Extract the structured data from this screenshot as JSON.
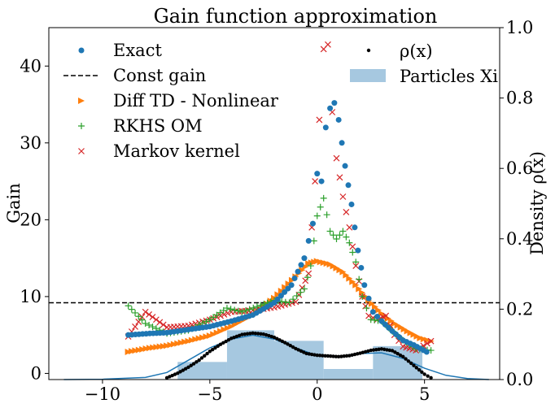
{
  "chart_data": {
    "type": "scatter",
    "title": "Gain function approximation",
    "xlabel": "",
    "ylabel": "Gain",
    "y2label": "Density ρ(x)",
    "xlim": [
      -12.5,
      8.5
    ],
    "ylim": [
      -0.8,
      45
    ],
    "y2lim": [
      0,
      1
    ],
    "xticks": [
      -10,
      -5,
      0,
      5
    ],
    "yticks": [
      0,
      10,
      20,
      30,
      40
    ],
    "y2ticks": [
      0.0,
      0.2,
      0.4,
      0.6,
      0.8,
      1.0
    ],
    "xtick_labels": [
      "−10",
      "−5",
      "0",
      "5"
    ],
    "ytick_labels": [
      "0",
      "10",
      "20",
      "30",
      "40"
    ],
    "y2tick_labels": [
      "0.0",
      "0.2",
      "0.4",
      "0.6",
      "0.8",
      "1.0"
    ],
    "legend_left": [
      "Exact",
      "Const gain",
      "Diff TD - Nonlinear",
      "RKHS OM",
      "Markov kernel"
    ],
    "legend_right": [
      "ρ(x)",
      "Particles X_i"
    ],
    "legend_right_display": [
      "ρ(x)",
      "Particles Xi"
    ],
    "colors": {
      "exact": "#1f77b4",
      "const": "#000000",
      "difftd": "#ff7f0e",
      "rkhs": "#2ca02c",
      "markov": "#d62728",
      "rho": "#000000",
      "hist": "#a6c8e0",
      "hist_line": "#1f77b4"
    },
    "constant_gain": 9.2,
    "histogram": {
      "bin_edges": [
        -6.5,
        -4.2,
        -2.0,
        0.3,
        2.6,
        4.9
      ],
      "density": [
        0.05,
        0.14,
        0.11,
        0.03,
        0.095
      ]
    },
    "series": [
      {
        "name": "Exact",
        "points": [
          [
            -8.8,
            5.0
          ],
          [
            -7.8,
            5.2
          ],
          [
            -7.0,
            5.3
          ],
          [
            -6.0,
            5.7
          ],
          [
            -5.0,
            6.1
          ],
          [
            -4.0,
            6.8
          ],
          [
            -3.0,
            7.6
          ],
          [
            -2.0,
            9.2
          ],
          [
            -1.2,
            11.5
          ],
          [
            -0.6,
            15.0
          ],
          [
            -0.2,
            19.5
          ],
          [
            0.0,
            26.0
          ],
          [
            0.2,
            25.0
          ],
          [
            0.4,
            32.0
          ],
          [
            0.6,
            34.5
          ],
          [
            0.8,
            35.2
          ],
          [
            1.0,
            33.0
          ],
          [
            1.3,
            27.0
          ],
          [
            1.6,
            22.0
          ],
          [
            1.9,
            16.0
          ],
          [
            2.2,
            11.5
          ],
          [
            2.6,
            8.0
          ],
          [
            3.0,
            6.8
          ],
          [
            3.5,
            5.5
          ],
          [
            4.0,
            4.3
          ],
          [
            4.5,
            3.7
          ],
          [
            5.1,
            2.8
          ]
        ]
      },
      {
        "name": "Diff TD - Nonlinear",
        "points": [
          [
            -8.8,
            2.8
          ],
          [
            -7.8,
            3.3
          ],
          [
            -7.0,
            3.6
          ],
          [
            -6.0,
            4.2
          ],
          [
            -5.0,
            4.9
          ],
          [
            -4.0,
            6.1
          ],
          [
            -3.0,
            7.6
          ],
          [
            -2.0,
            9.8
          ],
          [
            -1.0,
            12.6
          ],
          [
            -0.4,
            14.3
          ],
          [
            0.0,
            14.6
          ],
          [
            0.6,
            14.2
          ],
          [
            1.2,
            13.2
          ],
          [
            1.8,
            11.5
          ],
          [
            2.4,
            9.5
          ],
          [
            3.0,
            7.8
          ],
          [
            3.6,
            6.5
          ],
          [
            4.2,
            5.5
          ],
          [
            4.8,
            4.6
          ],
          [
            5.3,
            4.2
          ]
        ]
      },
      {
        "name": "RKHS OM",
        "points": [
          [
            -8.8,
            8.8
          ],
          [
            -8.0,
            6.5
          ],
          [
            -7.0,
            5.2
          ],
          [
            -6.0,
            5.6
          ],
          [
            -5.0,
            7.0
          ],
          [
            -4.2,
            8.5
          ],
          [
            -3.5,
            8.0
          ],
          [
            -2.8,
            8.7
          ],
          [
            -2.0,
            9.5
          ],
          [
            -1.3,
            9.2
          ],
          [
            -0.6,
            11.0
          ],
          [
            -0.3,
            14.0
          ],
          [
            0.0,
            20.5
          ],
          [
            0.3,
            22.8
          ],
          [
            0.6,
            18.5
          ],
          [
            0.9,
            17.5
          ],
          [
            1.2,
            18.5
          ],
          [
            1.5,
            17.0
          ],
          [
            1.8,
            14.5
          ],
          [
            2.1,
            10.0
          ],
          [
            2.5,
            7.0
          ],
          [
            3.0,
            6.8
          ],
          [
            3.5,
            5.5
          ],
          [
            4.0,
            4.3
          ],
          [
            4.6,
            3.2
          ],
          [
            5.3,
            3.0
          ]
        ]
      },
      {
        "name": "Markov kernel",
        "points": [
          [
            -8.8,
            4.8
          ],
          [
            -8.0,
            8.0
          ],
          [
            -7.0,
            6.0
          ],
          [
            -6.0,
            6.2
          ],
          [
            -5.0,
            7.0
          ],
          [
            -4.0,
            8.0
          ],
          [
            -3.0,
            8.2
          ],
          [
            -2.0,
            8.6
          ],
          [
            -1.0,
            9.3
          ],
          [
            -0.4,
            13.0
          ],
          [
            -0.1,
            25.0
          ],
          [
            0.1,
            33.0
          ],
          [
            0.3,
            42.2
          ],
          [
            0.5,
            42.8
          ],
          [
            0.7,
            34.0
          ],
          [
            0.9,
            28.0
          ],
          [
            1.2,
            23.0
          ],
          [
            1.5,
            19.0
          ],
          [
            1.8,
            14.0
          ],
          [
            2.1,
            10.0
          ],
          [
            2.4,
            7.5
          ],
          [
            2.8,
            7.0
          ],
          [
            3.2,
            7.5
          ],
          [
            3.6,
            5.0
          ],
          [
            4.0,
            3.5
          ],
          [
            4.6,
            3.0
          ],
          [
            5.3,
            4.2
          ]
        ]
      },
      {
        "name": "ρ(x)",
        "axis": "y2",
        "points": [
          [
            -7.0,
            0.005
          ],
          [
            -6.5,
            0.018
          ],
          [
            -6.0,
            0.035
          ],
          [
            -5.5,
            0.055
          ],
          [
            -5.0,
            0.08
          ],
          [
            -4.5,
            0.1
          ],
          [
            -4.0,
            0.117
          ],
          [
            -3.5,
            0.128
          ],
          [
            -3.0,
            0.132
          ],
          [
            -2.5,
            0.129
          ],
          [
            -2.0,
            0.12
          ],
          [
            -1.5,
            0.105
          ],
          [
            -1.0,
            0.088
          ],
          [
            -0.5,
            0.074
          ],
          [
            0.0,
            0.069
          ],
          [
            0.5,
            0.067
          ],
          [
            1.0,
            0.065
          ],
          [
            1.5,
            0.068
          ],
          [
            2.0,
            0.075
          ],
          [
            2.5,
            0.083
          ],
          [
            3.0,
            0.087
          ],
          [
            3.5,
            0.082
          ],
          [
            4.0,
            0.065
          ],
          [
            4.5,
            0.04
          ],
          [
            5.0,
            0.015
          ],
          [
            5.3,
            0.005
          ]
        ]
      },
      {
        "name": "",
        "axis": "y2",
        "points": [
          [
            -11.8,
            0.0
          ],
          [
            -10.0,
            0.001
          ],
          [
            -8.0,
            0.006
          ],
          [
            -7.0,
            0.02
          ],
          [
            -6.0,
            0.055
          ],
          [
            -5.0,
            0.09
          ],
          [
            -4.0,
            0.115
          ],
          [
            -3.0,
            0.126
          ],
          [
            -2.0,
            0.115
          ],
          [
            -1.0,
            0.09
          ],
          [
            0.0,
            0.068
          ],
          [
            1.0,
            0.066
          ],
          [
            2.0,
            0.074
          ],
          [
            3.0,
            0.076
          ],
          [
            4.0,
            0.06
          ],
          [
            5.0,
            0.032
          ],
          [
            6.0,
            0.012
          ],
          [
            7.0,
            0.003
          ],
          [
            8.0,
            0.0
          ]
        ]
      }
    ]
  }
}
